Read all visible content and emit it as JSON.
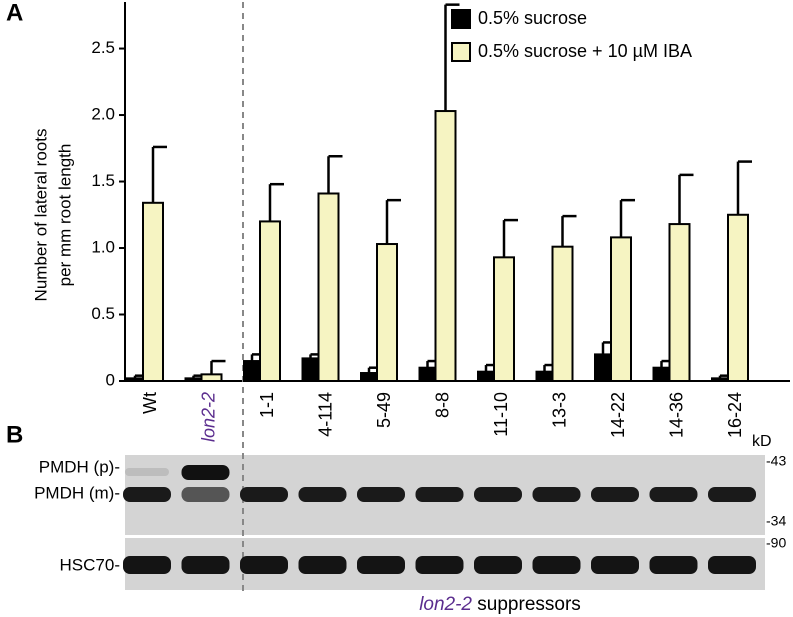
{
  "chart_data": {
    "type": "bar",
    "panel": "A",
    "y_label": [
      "Number of lateral roots",
      "per mm root length"
    ],
    "categories": [
      "Wt",
      "lon2-2",
      "1-1",
      "4-114",
      "5-49",
      "8-8",
      "11-10",
      "13-3",
      "14-22",
      "14-36",
      "16-24"
    ],
    "series": [
      {
        "name": "0.5% sucrose",
        "color": "#000000",
        "values": [
          0.02,
          0.02,
          0.15,
          0.17,
          0.06,
          0.1,
          0.07,
          0.07,
          0.2,
          0.1,
          0.02
        ],
        "errors": [
          0.02,
          0.02,
          0.05,
          0.03,
          0.04,
          0.05,
          0.05,
          0.05,
          0.09,
          0.05,
          0.02
        ]
      },
      {
        "name": "0.5% sucrose + 10 µM IBA",
        "color": "#f6f4c2",
        "values": [
          1.34,
          0.05,
          1.2,
          1.41,
          1.03,
          2.03,
          0.93,
          1.01,
          1.08,
          1.18,
          1.25
        ],
        "errors": [
          0.42,
          0.1,
          0.28,
          0.28,
          0.33,
          0.8,
          0.28,
          0.23,
          0.28,
          0.37,
          0.4
        ]
      }
    ],
    "ylim": [
      0,
      2.85
    ],
    "yticks": [
      0,
      0.5,
      {
        "value": 1,
        "label": "1.0"
      },
      1.5,
      {
        "value": 2,
        "label": "2.0"
      },
      2.5
    ],
    "grid": false
  },
  "blot": {
    "panel": "B",
    "bands": [
      "PMDH (p)-",
      "PMDH (m)-",
      "HSC70-"
    ],
    "unit": "kD",
    "markers": [
      "-43",
      "-34",
      "-90"
    ],
    "caption": {
      "strain": "lon2-2",
      "text": " suppressors"
    }
  }
}
